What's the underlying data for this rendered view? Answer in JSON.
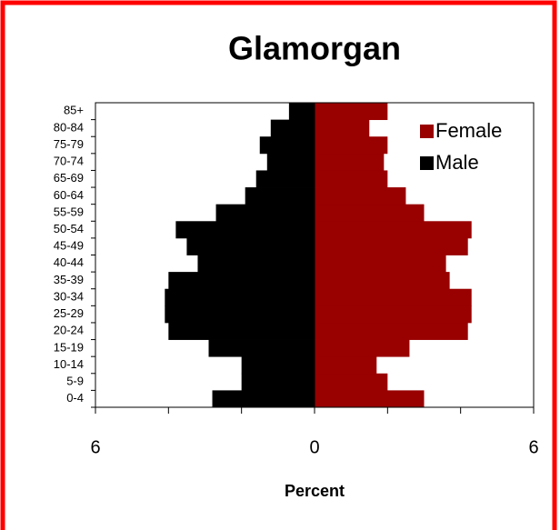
{
  "chart_data": {
    "type": "pyramid",
    "title": "Glamorgan",
    "x_label": "Percent",
    "categories": [
      "0-4",
      "5-9",
      "10-14",
      "15-19",
      "20-24",
      "25-29",
      "30-34",
      "35-39",
      "40-44",
      "45-49",
      "50-54",
      "55-59",
      "60-64",
      "65-69",
      "70-74",
      "75-79",
      "80-84",
      "85+"
    ],
    "series": [
      {
        "name": "Female",
        "color": "#990000",
        "values": [
          3.0,
          2.0,
          1.7,
          2.6,
          4.2,
          4.3,
          4.3,
          3.7,
          3.6,
          4.2,
          4.3,
          3.0,
          2.5,
          2.0,
          1.9,
          2.0,
          1.5,
          2.0
        ]
      },
      {
        "name": "Male",
        "color": "#000000",
        "values": [
          -2.8,
          -2.0,
          -2.0,
          -2.9,
          -4.0,
          -4.1,
          -4.1,
          -4.0,
          -3.2,
          -3.5,
          -3.8,
          -2.7,
          -1.9,
          -1.6,
          -1.3,
          -1.5,
          -1.2,
          -0.7
        ]
      }
    ],
    "xlim": [
      -6,
      6
    ],
    "xticks": [
      {
        "value": -6,
        "label": "6"
      },
      0,
      6
    ],
    "xminor_ticks": [
      -4,
      -2,
      2,
      4
    ],
    "legend": "top-right",
    "border_color": "#ff0000"
  }
}
